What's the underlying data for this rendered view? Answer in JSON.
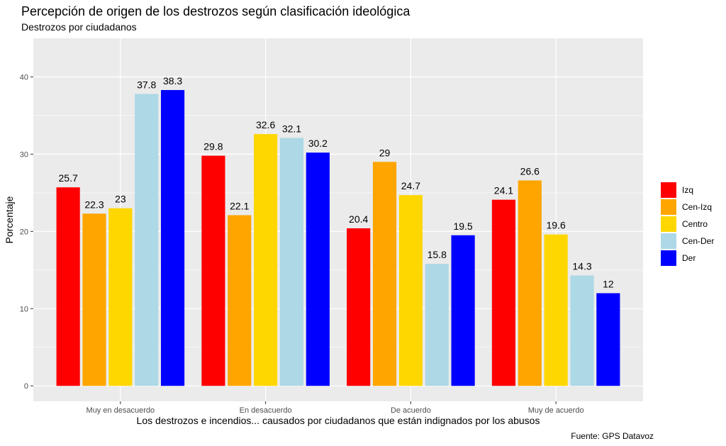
{
  "chart_data": {
    "type": "bar",
    "title": "Percepción de origen de los destrozos según clasificación ideológica",
    "subtitle": "Destrozos por ciudadanos",
    "xlabel": "Los destrozos e incendios... causados por ciudadanos que están indignados por los abusos",
    "ylabel": "Porcentaje",
    "caption": "Fuente: GPS Datavoz",
    "categories": [
      "Muy en desacuerdo",
      "En desacuerdo",
      "De acuerdo",
      "Muy de acuerdo"
    ],
    "ylim": [
      -2,
      45
    ],
    "yticks": [
      0,
      10,
      20,
      30,
      40
    ],
    "grid": true,
    "legend_position": "right",
    "series": [
      {
        "name": "Izq",
        "color": "#FF0000",
        "values": [
          25.7,
          29.8,
          20.4,
          24.1
        ]
      },
      {
        "name": "Cen-Izq",
        "color": "#FFA500",
        "values": [
          22.3,
          22.1,
          29,
          26.6
        ]
      },
      {
        "name": "Centro",
        "color": "#FFD700",
        "values": [
          23,
          32.6,
          24.7,
          19.6
        ]
      },
      {
        "name": "Cen-Der",
        "color": "#ADD8E6",
        "values": [
          37.8,
          32.1,
          15.8,
          14.3
        ]
      },
      {
        "name": "Der",
        "color": "#0000FF",
        "values": [
          38.3,
          30.2,
          19.5,
          12
        ]
      }
    ]
  }
}
